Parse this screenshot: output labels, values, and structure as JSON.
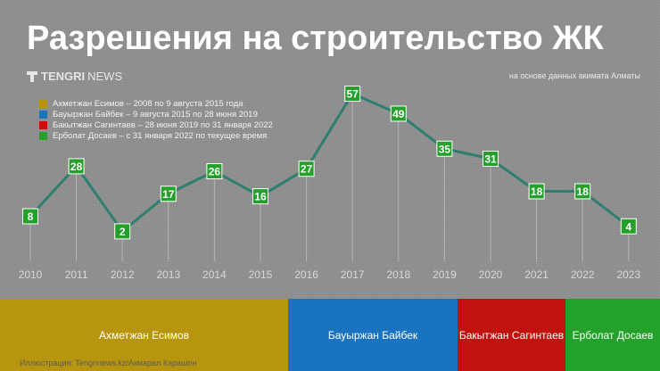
{
  "header": {
    "title": "Разрешения на строительство ЖК",
    "logo_bold": "TENGRI",
    "logo_light": "NEWS",
    "source": "на основе данных акимата Алматы"
  },
  "legend": [
    {
      "label": "Ахметжан Есимов – 2008 по 9 августа 2015 года",
      "color": "#b8950f"
    },
    {
      "label": "Бауыржан Байбек – 9 августа 2015 по 28 июня 2019",
      "color": "#1a73c0"
    },
    {
      "label": "Бакытжан Сагинтаев – 28 июня 2019 по 31 января 2022",
      "color": "#c1120e"
    },
    {
      "label": "Ерболат Досаев – с 31 января 2022 по текущее время",
      "color": "#23a12a"
    }
  ],
  "chart_data": {
    "type": "line",
    "title": "Разрешения на строительство ЖК",
    "x": [
      "2010",
      "2011",
      "2012",
      "2013",
      "2014",
      "2015",
      "2016",
      "2017",
      "2018",
      "2019",
      "2020",
      "2021",
      "2022",
      "2023"
    ],
    "values": [
      8,
      28,
      2,
      17,
      26,
      16,
      27,
      57,
      49,
      35,
      31,
      18,
      18,
      4
    ],
    "ylim": [
      0,
      57
    ],
    "line_color": "#2f7f70",
    "marker_color": "#23a12a",
    "grid": false
  },
  "bands": [
    {
      "label": "Ахметжан Есимов",
      "color": "#b8950f"
    },
    {
      "label": "Бауыржан Байбек",
      "color": "#1a73c0"
    },
    {
      "label": "Бакытжан Сагинтаев",
      "color": "#c1120e"
    },
    {
      "label": "Ерболат Досаев",
      "color": "#23a12a"
    }
  ],
  "credit": "Иллюстрация: Tengrinews.kz/Акмарал Карашон"
}
